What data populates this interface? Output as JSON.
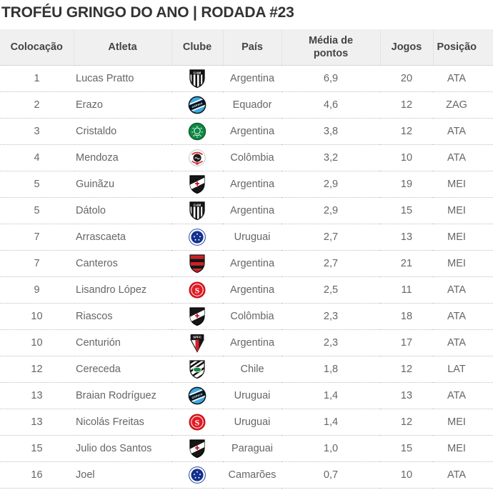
{
  "title": "TROFÉU GRINGO DO ANO | RODADA #23",
  "colors": {
    "title_text": "#333333",
    "header_bg": "#f0f0f0",
    "header_text": "#444444",
    "row_text": "#666666",
    "row_separator": "#bfbfbf"
  },
  "table": {
    "columns": [
      "Colocação",
      "Atleta",
      "Clube",
      "País",
      "Média de pontos",
      "Jogos",
      "Posição"
    ],
    "rows": [
      {
        "colocacao": "1",
        "atleta": "Lucas Pratto",
        "clube": "atletico-mg",
        "clube_nome": "Atlético-MG",
        "pais": "Argentina",
        "media_de_pontos": "6,9",
        "jogos": "20",
        "posicao": "ATA"
      },
      {
        "colocacao": "2",
        "atleta": "Erazo",
        "clube": "gremio",
        "clube_nome": "Grêmio",
        "pais": "Equador",
        "media_de_pontos": "4,6",
        "jogos": "12",
        "posicao": "ZAG"
      },
      {
        "colocacao": "3",
        "atleta": "Cristaldo",
        "clube": "palmeiras",
        "clube_nome": "Palmeiras",
        "pais": "Argentina",
        "media_de_pontos": "3,8",
        "jogos": "12",
        "posicao": "ATA"
      },
      {
        "colocacao": "4",
        "atleta": "Mendoza",
        "clube": "corinthians",
        "clube_nome": "Corinthians",
        "pais": "Colômbia",
        "media_de_pontos": "3,2",
        "jogos": "10",
        "posicao": "ATA"
      },
      {
        "colocacao": "5",
        "atleta": "Guinãzu",
        "clube": "vasco",
        "clube_nome": "Vasco",
        "pais": "Argentina",
        "media_de_pontos": "2,9",
        "jogos": "19",
        "posicao": "MEI"
      },
      {
        "colocacao": "5",
        "atleta": "Dátolo",
        "clube": "atletico-mg",
        "clube_nome": "Atlético-MG",
        "pais": "Argentina",
        "media_de_pontos": "2,9",
        "jogos": "15",
        "posicao": "MEI"
      },
      {
        "colocacao": "7",
        "atleta": "Arrascaeta",
        "clube": "cruzeiro",
        "clube_nome": "Cruzeiro",
        "pais": "Uruguai",
        "media_de_pontos": "2,7",
        "jogos": "13",
        "posicao": "MEI"
      },
      {
        "colocacao": "7",
        "atleta": "Canteros",
        "clube": "flamengo",
        "clube_nome": "Flamengo",
        "pais": "Argentina",
        "media_de_pontos": "2,7",
        "jogos": "21",
        "posicao": "MEI"
      },
      {
        "colocacao": "9",
        "atleta": "Lisandro López",
        "clube": "internacional",
        "clube_nome": "Internacional",
        "pais": "Argentina",
        "media_de_pontos": "2,5",
        "jogos": "11",
        "posicao": "ATA"
      },
      {
        "colocacao": "10",
        "atleta": "Riascos",
        "clube": "vasco",
        "clube_nome": "Vasco",
        "pais": "Colômbia",
        "media_de_pontos": "2,3",
        "jogos": "18",
        "posicao": "ATA"
      },
      {
        "colocacao": "10",
        "atleta": "Centurión",
        "clube": "sao-paulo",
        "clube_nome": "São Paulo",
        "pais": "Argentina",
        "media_de_pontos": "2,3",
        "jogos": "17",
        "posicao": "ATA"
      },
      {
        "colocacao": "12",
        "atleta": "Cereceda",
        "clube": "figueirense",
        "clube_nome": "Figueirense",
        "pais": "Chile",
        "media_de_pontos": "1,8",
        "jogos": "12",
        "posicao": "LAT"
      },
      {
        "colocacao": "13",
        "atleta": "Braian Rodríguez",
        "clube": "gremio",
        "clube_nome": "Grêmio",
        "pais": "Uruguai",
        "media_de_pontos": "1,4",
        "jogos": "13",
        "posicao": "ATA"
      },
      {
        "colocacao": "13",
        "atleta": "Nicolás Freitas",
        "clube": "internacional",
        "clube_nome": "Internacional",
        "pais": "Uruguai",
        "media_de_pontos": "1,4",
        "jogos": "12",
        "posicao": "MEI"
      },
      {
        "colocacao": "15",
        "atleta": "Julio dos Santos",
        "clube": "vasco",
        "clube_nome": "Vasco",
        "pais": "Paraguai",
        "media_de_pontos": "1,0",
        "jogos": "15",
        "posicao": "MEI"
      },
      {
        "colocacao": "16",
        "atleta": "Joel",
        "clube": "cruzeiro",
        "clube_nome": "Cruzeiro",
        "pais": "Camarões",
        "media_de_pontos": "0,7",
        "jogos": "10",
        "posicao": "ATA"
      }
    ]
  }
}
